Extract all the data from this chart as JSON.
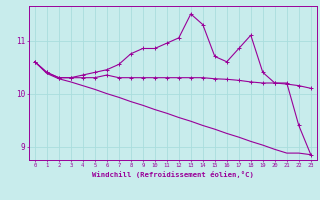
{
  "title": "",
  "xlabel": "Windchill (Refroidissement éolien,°C)",
  "background_color": "#c8ecec",
  "line_color": "#990099",
  "grid_color": "#aadddd",
  "x": [
    0,
    1,
    2,
    3,
    4,
    5,
    6,
    7,
    8,
    9,
    10,
    11,
    12,
    13,
    14,
    15,
    16,
    17,
    18,
    19,
    20,
    21,
    22,
    23
  ],
  "line1": [
    10.6,
    10.4,
    10.3,
    10.3,
    10.3,
    10.3,
    10.35,
    10.3,
    10.3,
    10.3,
    10.3,
    10.3,
    10.3,
    10.3,
    10.3,
    10.28,
    10.27,
    10.25,
    10.22,
    10.2,
    10.2,
    10.18,
    10.15,
    10.1
  ],
  "line2": [
    10.6,
    10.4,
    10.3,
    10.3,
    10.35,
    10.4,
    10.45,
    10.55,
    10.75,
    10.85,
    10.85,
    10.95,
    11.05,
    11.5,
    11.3,
    10.7,
    10.6,
    10.85,
    11.1,
    10.4,
    10.2,
    10.2,
    9.4,
    8.85
  ],
  "line3": [
    10.6,
    10.38,
    10.28,
    10.22,
    10.15,
    10.08,
    10.0,
    9.93,
    9.85,
    9.78,
    9.7,
    9.63,
    9.55,
    9.48,
    9.4,
    9.33,
    9.25,
    9.18,
    9.1,
    9.03,
    8.95,
    8.88,
    8.88,
    8.85
  ],
  "ylim": [
    8.75,
    11.65
  ],
  "yticks": [
    9,
    10,
    11
  ],
  "xlim": [
    -0.5,
    23.5
  ]
}
